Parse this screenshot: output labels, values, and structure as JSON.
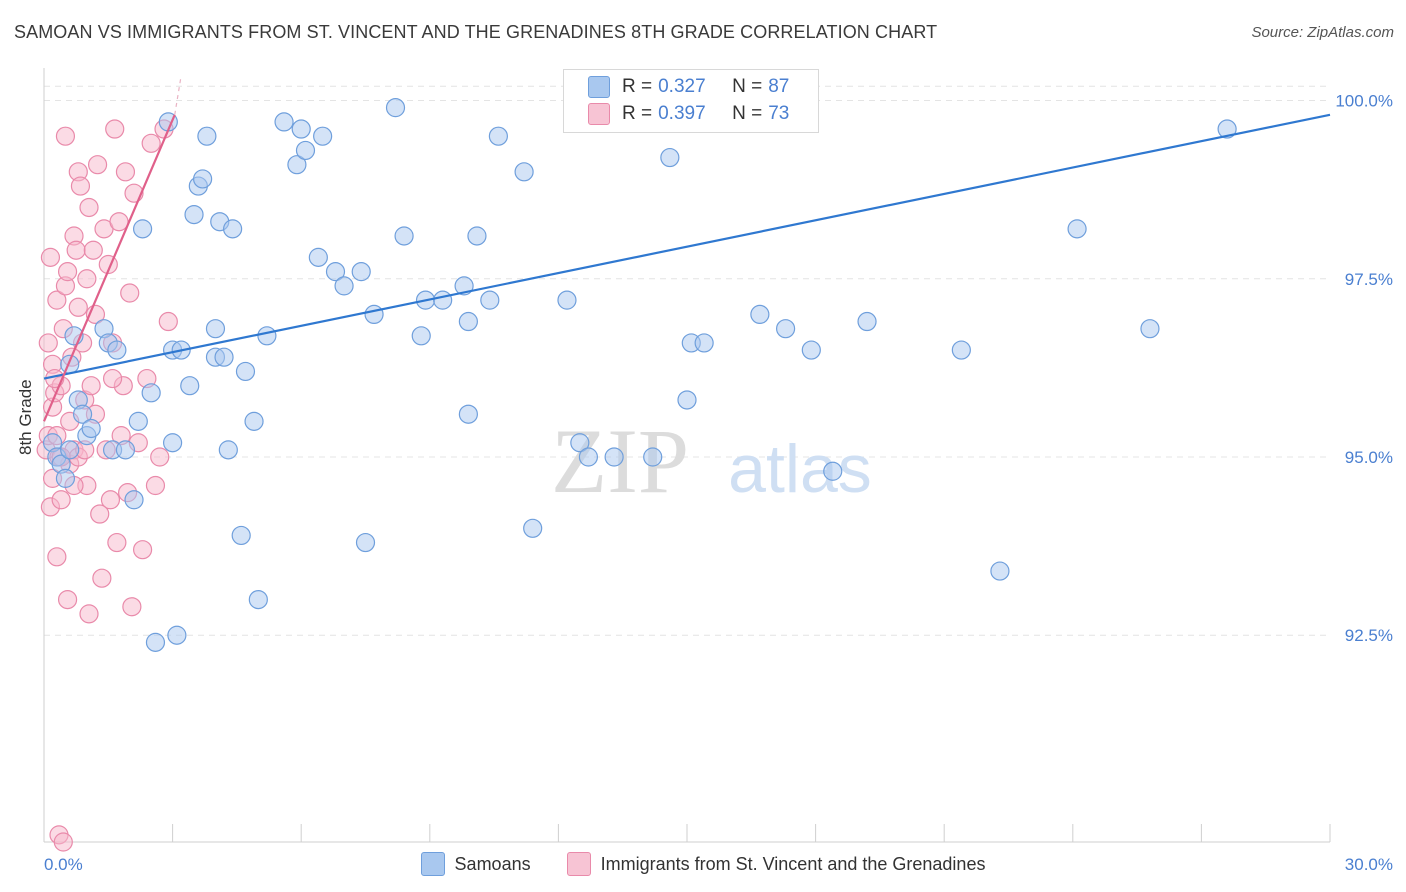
{
  "title": "SAMOAN VS IMMIGRANTS FROM ST. VINCENT AND THE GRENADINES 8TH GRADE CORRELATION CHART",
  "source": "Source: ZipAtlas.com",
  "watermark": {
    "zip": "ZIP",
    "atlas": "atlas"
  },
  "legend_box": {
    "rows": [
      {
        "r_label": "R =",
        "r_value": "0.327",
        "n_label": "N =",
        "n_value": "87"
      },
      {
        "r_label": "R =",
        "r_value": "0.397",
        "n_label": "N =",
        "n_value": "73"
      }
    ]
  },
  "colors": {
    "samoans_fill": "#a9c8ef",
    "samoans_stroke": "#6f9fdc",
    "samoans_line": "#2f78d0",
    "svg_fill": "#f7b8cc",
    "svg_stroke": "#e98aaa",
    "svg_line": "#e0608a",
    "axis_text": "#4a7fd0",
    "grid": "#e4e4e4"
  },
  "chart_data": {
    "type": "scatter",
    "title": "SAMOAN VS IMMIGRANTS FROM ST. VINCENT AND THE GRENADINES 8TH GRADE CORRELATION CHART",
    "xlabel": "",
    "ylabel": "8th Grade",
    "xlim": [
      0.0,
      30.0
    ],
    "ylim": [
      89.6,
      100.4
    ],
    "x_tick_labels": [
      "0.0%",
      "30.0%"
    ],
    "y_ticks": [
      92.5,
      95.0,
      97.5,
      100.0
    ],
    "y_tick_labels": [
      "92.5%",
      "95.0%",
      "97.5%",
      "100.0%"
    ],
    "grid": true,
    "legend_position": "bottom",
    "series": [
      {
        "name": "Samoans",
        "r": 0.327,
        "n": 87,
        "trendline": {
          "x": [
            0.0,
            30.0
          ],
          "y": [
            96.1,
            99.8
          ]
        },
        "points": [
          [
            0.2,
            95.2
          ],
          [
            0.3,
            95.0
          ],
          [
            0.4,
            94.9
          ],
          [
            0.5,
            94.7
          ],
          [
            0.6,
            95.1
          ],
          [
            0.6,
            96.3
          ],
          [
            0.7,
            96.7
          ],
          [
            0.8,
            95.8
          ],
          [
            0.9,
            95.6
          ],
          [
            1.0,
            95.3
          ],
          [
            1.1,
            95.4
          ],
          [
            1.4,
            96.8
          ],
          [
            1.5,
            96.6
          ],
          [
            1.6,
            95.1
          ],
          [
            1.7,
            96.5
          ],
          [
            1.9,
            95.1
          ],
          [
            2.1,
            94.4
          ],
          [
            2.2,
            95.5
          ],
          [
            2.3,
            98.2
          ],
          [
            2.5,
            95.9
          ],
          [
            2.6,
            92.4
          ],
          [
            2.9,
            99.7
          ],
          [
            3.0,
            96.5
          ],
          [
            3.0,
            95.2
          ],
          [
            3.1,
            92.5
          ],
          [
            3.2,
            96.5
          ],
          [
            3.4,
            96.0
          ],
          [
            3.5,
            98.4
          ],
          [
            3.6,
            98.8
          ],
          [
            3.7,
            98.9
          ],
          [
            3.8,
            99.5
          ],
          [
            4.0,
            96.4
          ],
          [
            4.0,
            96.8
          ],
          [
            4.1,
            98.3
          ],
          [
            4.2,
            96.4
          ],
          [
            4.3,
            95.1
          ],
          [
            4.4,
            98.2
          ],
          [
            4.6,
            93.9
          ],
          [
            4.7,
            96.2
          ],
          [
            4.9,
            95.5
          ],
          [
            5.0,
            93.0
          ],
          [
            5.2,
            96.7
          ],
          [
            5.6,
            99.7
          ],
          [
            5.9,
            99.1
          ],
          [
            6.0,
            99.6
          ],
          [
            6.1,
            99.3
          ],
          [
            6.4,
            97.8
          ],
          [
            6.5,
            99.5
          ],
          [
            6.8,
            97.6
          ],
          [
            7.0,
            97.4
          ],
          [
            7.4,
            97.6
          ],
          [
            7.5,
            93.8
          ],
          [
            7.7,
            97.0
          ],
          [
            8.2,
            99.9
          ],
          [
            8.4,
            98.1
          ],
          [
            8.8,
            96.7
          ],
          [
            8.9,
            97.2
          ],
          [
            9.3,
            97.2
          ],
          [
            9.8,
            97.4
          ],
          [
            9.9,
            96.9
          ],
          [
            9.9,
            95.6
          ],
          [
            10.1,
            98.1
          ],
          [
            10.4,
            97.2
          ],
          [
            10.6,
            99.5
          ],
          [
            11.2,
            99.0
          ],
          [
            11.4,
            94.0
          ],
          [
            12.2,
            97.2
          ],
          [
            12.5,
            95.2
          ],
          [
            12.7,
            95.0
          ],
          [
            13.3,
            95.0
          ],
          [
            13.9,
            99.9
          ],
          [
            14.2,
            95.0
          ],
          [
            14.6,
            99.2
          ],
          [
            15.0,
            95.8
          ],
          [
            15.1,
            96.6
          ],
          [
            15.4,
            96.6
          ],
          [
            16.0,
            99.7
          ],
          [
            16.7,
            97.0
          ],
          [
            17.3,
            96.8
          ],
          [
            17.9,
            96.5
          ],
          [
            18.4,
            94.8
          ],
          [
            19.2,
            96.9
          ],
          [
            21.4,
            96.5
          ],
          [
            22.3,
            93.4
          ],
          [
            24.1,
            98.2
          ],
          [
            25.8,
            96.8
          ],
          [
            27.6,
            99.6
          ]
        ]
      },
      {
        "name": "Immigrants from St. Vincent and the Grenadines",
        "r": 0.397,
        "n": 73,
        "trendline": {
          "x": [
            0.0,
            3.05
          ],
          "y": [
            95.5,
            99.8
          ]
        },
        "points": [
          [
            0.05,
            95.1
          ],
          [
            0.1,
            95.3
          ],
          [
            0.1,
            96.6
          ],
          [
            0.15,
            94.3
          ],
          [
            0.15,
            97.8
          ],
          [
            0.2,
            95.7
          ],
          [
            0.2,
            94.7
          ],
          [
            0.2,
            96.3
          ],
          [
            0.25,
            95.9
          ],
          [
            0.3,
            97.2
          ],
          [
            0.3,
            93.6
          ],
          [
            0.35,
            95.0
          ],
          [
            0.4,
            94.4
          ],
          [
            0.4,
            96.0
          ],
          [
            0.45,
            96.8
          ],
          [
            0.5,
            99.5
          ],
          [
            0.5,
            97.4
          ],
          [
            0.55,
            97.6
          ],
          [
            0.6,
            95.5
          ],
          [
            0.6,
            94.9
          ],
          [
            0.65,
            96.4
          ],
          [
            0.7,
            98.1
          ],
          [
            0.7,
            95.1
          ],
          [
            0.75,
            97.9
          ],
          [
            0.8,
            99.0
          ],
          [
            0.8,
            95.0
          ],
          [
            0.85,
            98.8
          ],
          [
            0.9,
            96.6
          ],
          [
            0.95,
            95.8
          ],
          [
            1.0,
            97.5
          ],
          [
            1.0,
            94.6
          ],
          [
            1.05,
            98.5
          ],
          [
            1.1,
            96.0
          ],
          [
            1.15,
            97.9
          ],
          [
            1.2,
            95.6
          ],
          [
            1.25,
            99.1
          ],
          [
            1.3,
            94.2
          ],
          [
            1.35,
            93.3
          ],
          [
            1.4,
            98.2
          ],
          [
            1.45,
            95.1
          ],
          [
            1.5,
            97.7
          ],
          [
            1.55,
            94.4
          ],
          [
            1.6,
            96.6
          ],
          [
            1.65,
            99.6
          ],
          [
            1.7,
            93.8
          ],
          [
            1.75,
            98.3
          ],
          [
            1.8,
            95.3
          ],
          [
            1.85,
            96.0
          ],
          [
            1.9,
            99.0
          ],
          [
            1.95,
            94.5
          ],
          [
            2.0,
            97.3
          ],
          [
            2.05,
            92.9
          ],
          [
            2.1,
            98.7
          ],
          [
            2.2,
            95.2
          ],
          [
            2.3,
            93.7
          ],
          [
            2.4,
            96.1
          ],
          [
            2.5,
            99.4
          ],
          [
            2.6,
            94.6
          ],
          [
            2.7,
            95.0
          ],
          [
            2.8,
            99.6
          ],
          [
            2.9,
            96.9
          ],
          [
            0.35,
            89.7
          ],
          [
            0.45,
            89.6
          ],
          [
            0.3,
            95.3
          ],
          [
            0.4,
            95.0
          ],
          [
            1.2,
            97.0
          ],
          [
            0.8,
            97.1
          ],
          [
            0.25,
            96.1
          ],
          [
            1.6,
            96.1
          ],
          [
            0.95,
            95.1
          ],
          [
            0.55,
            93.0
          ],
          [
            1.05,
            92.8
          ],
          [
            0.7,
            94.6
          ]
        ]
      }
    ]
  }
}
